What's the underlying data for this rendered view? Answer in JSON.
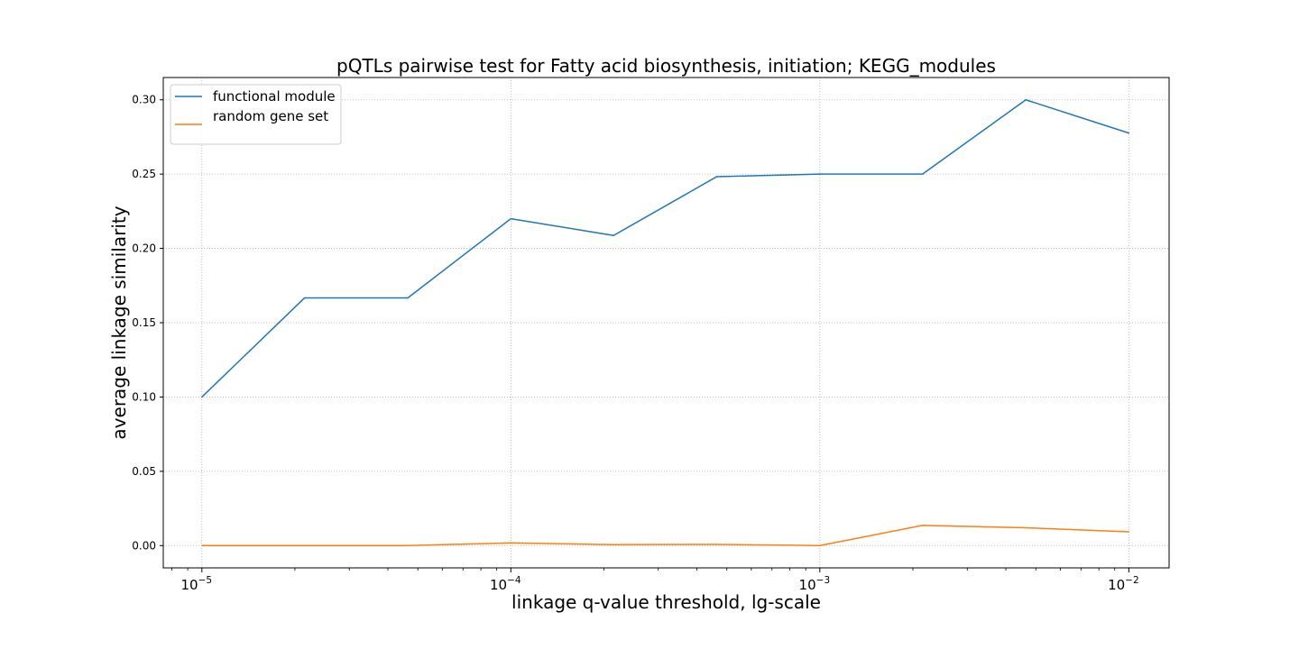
{
  "chart_data": {
    "type": "line",
    "title": "pQTLs pairwise test for Fatty acid biosynthesis, initiation; KEGG_modules",
    "xlabel": "linkage q-value threshold, lg-scale",
    "ylabel": "average linkage similarity",
    "xscale": "log10",
    "xlim": [
      7.5e-06,
      0.0135
    ],
    "ylim": [
      -0.015,
      0.315
    ],
    "x": [
      1e-05,
      2.15e-05,
      4.64e-05,
      0.0001,
      0.000215,
      0.000464,
      0.001,
      0.00215,
      0.00464,
      0.01
    ],
    "xticks": [
      {
        "value": 1e-05,
        "base": "10",
        "exp": "−5"
      },
      {
        "value": 0.0001,
        "base": "10",
        "exp": "−4"
      },
      {
        "value": 0.001,
        "base": "10",
        "exp": "−3"
      },
      {
        "value": 0.01,
        "base": "10",
        "exp": "−2"
      }
    ],
    "yticks": [
      "0.00",
      "0.05",
      "0.10",
      "0.15",
      "0.20",
      "0.25",
      "0.30"
    ],
    "grid": true,
    "legend_position": "top-left",
    "series": [
      {
        "name": "functional module",
        "color": "#1f77b4",
        "values": [
          0.1,
          0.1667,
          0.1667,
          0.22,
          0.2087,
          0.2483,
          0.25,
          0.25,
          0.3,
          0.2776
        ]
      },
      {
        "name": "random gene set",
        "color": "#ff7f0e",
        "values": [
          0.0,
          0.0,
          0.0,
          0.0018,
          0.0006,
          0.0008,
          0.0,
          0.0136,
          0.012,
          0.0093
        ]
      }
    ]
  }
}
